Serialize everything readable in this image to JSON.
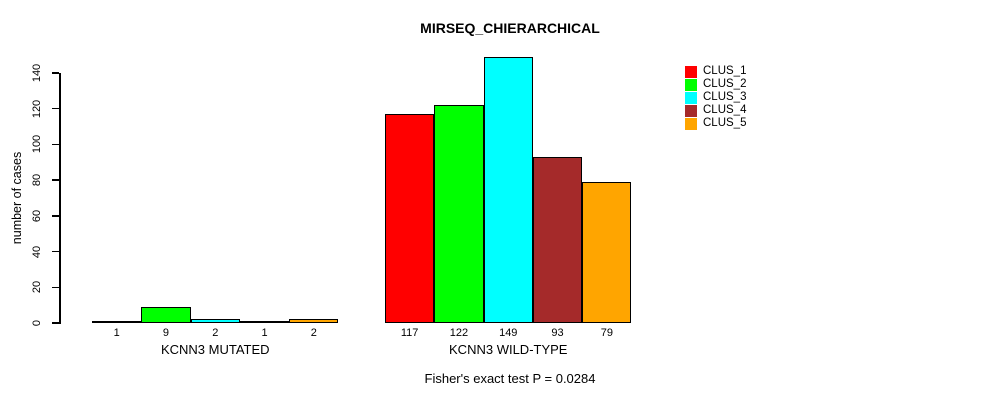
{
  "title": "MIRSEQ_CHIERARCHICAL",
  "subtitle": "Fisher's exact test P = 0.0284",
  "y_axis_label": "number of cases",
  "chart_data": {
    "type": "bar",
    "title": "MIRSEQ_CHIERARCHICAL",
    "xlabel": "",
    "ylabel": "number of cases",
    "ylim": [
      0,
      140
    ],
    "yticks": [
      0,
      20,
      40,
      60,
      80,
      100,
      120,
      140
    ],
    "grid": false,
    "legend_position": "top-right",
    "categories": [
      "KCNN3 MUTATED",
      "KCNN3 WILD-TYPE"
    ],
    "series": [
      {
        "name": "CLUS_1",
        "color": "#ff0000",
        "values": [
          1,
          117
        ]
      },
      {
        "name": "CLUS_2",
        "color": "#00ff00",
        "values": [
          9,
          122
        ]
      },
      {
        "name": "CLUS_3",
        "color": "#00ffff",
        "values": [
          2,
          149
        ]
      },
      {
        "name": "CLUS_4",
        "color": "#a52a2a",
        "values": [
          1,
          93
        ]
      },
      {
        "name": "CLUS_5",
        "color": "#ffa500",
        "values": [
          2,
          79
        ]
      }
    ],
    "bar_value_labels": [
      [
        1,
        9,
        2,
        1,
        2
      ],
      [
        117,
        122,
        149,
        93,
        79
      ]
    ],
    "annotation": "Fisher's exact test P = 0.0284"
  }
}
